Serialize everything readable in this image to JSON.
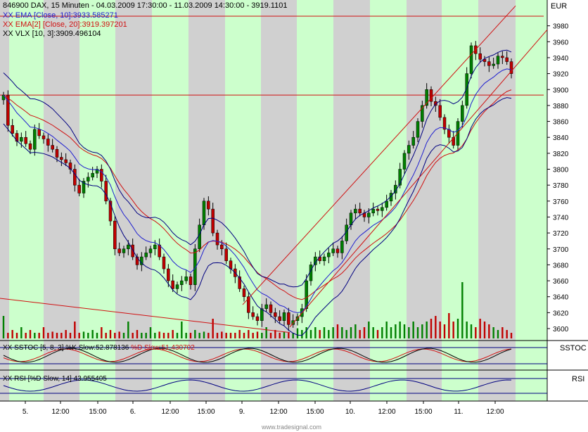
{
  "header": {
    "title": "846900  DAX, 15 Minuten - 04.03.2009 17:30:00 - 11.03.2009 14:30:00 - 3919.1101",
    "currency": "EUR"
  },
  "indicators": [
    {
      "text": "XX EMA [Close, 10]:3933.585271",
      "color": "#2020d0"
    },
    {
      "text": "XX EMA[2] [Close, 20]:3919.397201",
      "color": "#d01010"
    },
    {
      "text": "XX VLX [10, 3]:3909.496104",
      "color": "#000000"
    }
  ],
  "subpanels": {
    "sstoc": {
      "label": "SSTOC",
      "legend_a": "XX SSTOC [5, 8, 3] %K Slow:52.878136",
      "legend_b": "%D Slow:51.430702"
    },
    "rsi": {
      "label": "RSI",
      "legend": "XX RSI [%D Slow, 14] 43.955405"
    }
  },
  "watermark": "www.tradesignal.com",
  "colors": {
    "up": "#008000",
    "down": "#c00000",
    "ema10": "#2020d0",
    "ema20": "#d01010",
    "band": "#000080",
    "green_bg": "#ccffcc",
    "gray_bg": "#d0d0d0"
  },
  "chart_data": {
    "type": "candlestick",
    "ylim": [
      3585,
      4000
    ],
    "y_ticks": [
      3600,
      3620,
      3640,
      3660,
      3680,
      3700,
      3720,
      3740,
      3760,
      3780,
      3800,
      3820,
      3840,
      3860,
      3880,
      3900,
      3920,
      3940,
      3960,
      3980
    ],
    "x_labels": [
      "5.",
      "12:00",
      "15:00",
      "6.",
      "12:00",
      "15:00",
      "9.",
      "12:00",
      "15:00",
      "10.",
      "12:00",
      "15:00",
      "11.",
      "12:00"
    ],
    "horizontal_levels": [
      3992,
      3893
    ],
    "close_series": [
      3893,
      3855,
      3845,
      3835,
      3840,
      3832,
      3825,
      3850,
      3842,
      3838,
      3830,
      3825,
      3815,
      3812,
      3808,
      3800,
      3780,
      3770,
      3785,
      3790,
      3795,
      3800,
      3785,
      3760,
      3735,
      3700,
      3695,
      3700,
      3705,
      3690,
      3680,
      3690,
      3695,
      3700,
      3705,
      3690,
      3675,
      3660,
      3650,
      3655,
      3660,
      3665,
      3655,
      3700,
      3730,
      3760,
      3750,
      3720,
      3705,
      3700,
      3685,
      3675,
      3665,
      3650,
      3640,
      3620,
      3615,
      3610,
      3625,
      3630,
      3620,
      3615,
      3610,
      3620,
      3605,
      3610,
      3615,
      3625,
      3660,
      3680,
      3690,
      3685,
      3690,
      3695,
      3700,
      3695,
      3710,
      3730,
      3745,
      3750,
      3745,
      3740,
      3745,
      3750,
      3748,
      3752,
      3760,
      3770,
      3780,
      3800,
      3820,
      3830,
      3840,
      3860,
      3880,
      3900,
      3885,
      3880,
      3865,
      3850,
      3840,
      3830,
      3860,
      3880,
      3920,
      3955,
      3945,
      3938,
      3935,
      3930,
      3932,
      3942,
      3940,
      3935,
      3920
    ],
    "volume_scale": [
      0.4,
      0.1,
      0.15,
      0.1,
      0.2,
      0.1,
      0.15,
      0.1,
      0.1,
      0.2,
      0.1,
      0.12,
      0.1,
      0.1,
      0.15,
      0.1,
      0.3,
      0.1,
      0.12,
      0.1,
      0.15,
      0.1,
      0.2,
      0.1,
      0.15,
      0.1,
      0.12,
      0.1,
      0.3,
      0.1,
      0.15,
      0.1,
      0.1,
      0.2,
      0.1,
      0.12,
      0.1,
      0.1,
      0.15,
      0.1,
      0.3,
      0.1,
      0.1,
      0.15,
      0.1,
      0.12,
      0.1,
      0.35,
      0.1,
      0.12,
      0.1,
      0.1,
      0.1,
      0.15,
      0.1,
      0.15,
      0.1,
      0.12,
      0.1,
      0.2,
      0.1,
      0.15,
      0.1,
      0.12,
      0.1,
      0.1,
      0.18,
      0.15,
      0.2,
      0.15,
      0.2,
      0.15,
      0.2,
      0.15,
      0.2,
      0.25,
      0.2,
      0.15,
      0.2,
      0.25,
      0.15,
      0.2,
      0.3,
      0.2,
      0.15,
      0.2,
      0.3,
      0.2,
      0.25,
      0.3,
      0.25,
      0.2,
      0.3,
      0.2,
      0.25,
      0.3,
      0.35,
      0.4,
      0.3,
      0.25,
      0.45,
      0.3,
      0.35,
      1.0,
      0.3,
      0.25,
      0.2,
      0.35,
      0.3,
      0.25,
      0.2,
      0.15,
      0.2,
      0.15,
      0.1
    ],
    "ema10_last": 3933.585271,
    "ema20_last": 3919.397201,
    "vlx_last": 3909.496104,
    "sstoc_k_last": 52.878136,
    "sstoc_d_last": 51.430702,
    "rsi_last": 43.955405
  }
}
